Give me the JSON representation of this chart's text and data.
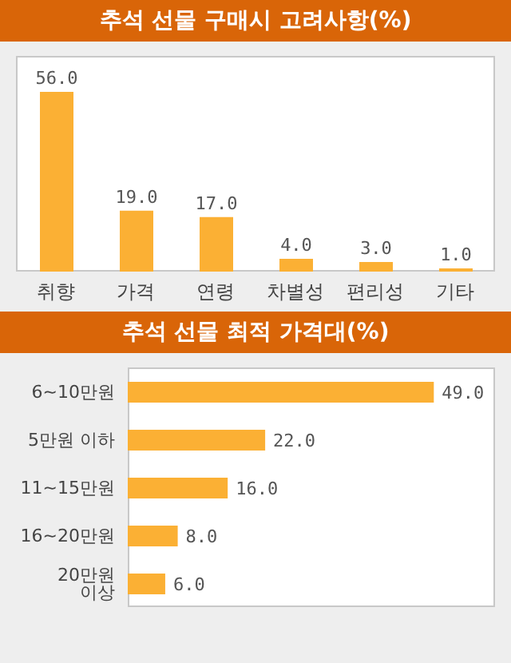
{
  "chart_data": [
    {
      "type": "bar",
      "title": "추석 선물 구매시 고려사항(%)",
      "categories": [
        "취향",
        "가격",
        "연령",
        "차별성",
        "편리성",
        "기타"
      ],
      "values": [
        56,
        19,
        17,
        4,
        3,
        1
      ],
      "value_labels": [
        "56.0",
        "19.0",
        "17.0",
        "4.0",
        "3.0",
        "1.0"
      ],
      "color": "#fbb034"
    },
    {
      "type": "bar",
      "orientation": "horizontal",
      "title": "추석 선물 최적 가격대(%)",
      "categories": [
        "6~10만원",
        "5만원 이하",
        "11~15만원",
        "16~20만원",
        "20만원 이상"
      ],
      "values": [
        49,
        22,
        16,
        8,
        6
      ],
      "value_labels": [
        "49.0",
        "22.0",
        "16.0",
        "8.0",
        "6.0"
      ],
      "color": "#fbb034"
    }
  ]
}
